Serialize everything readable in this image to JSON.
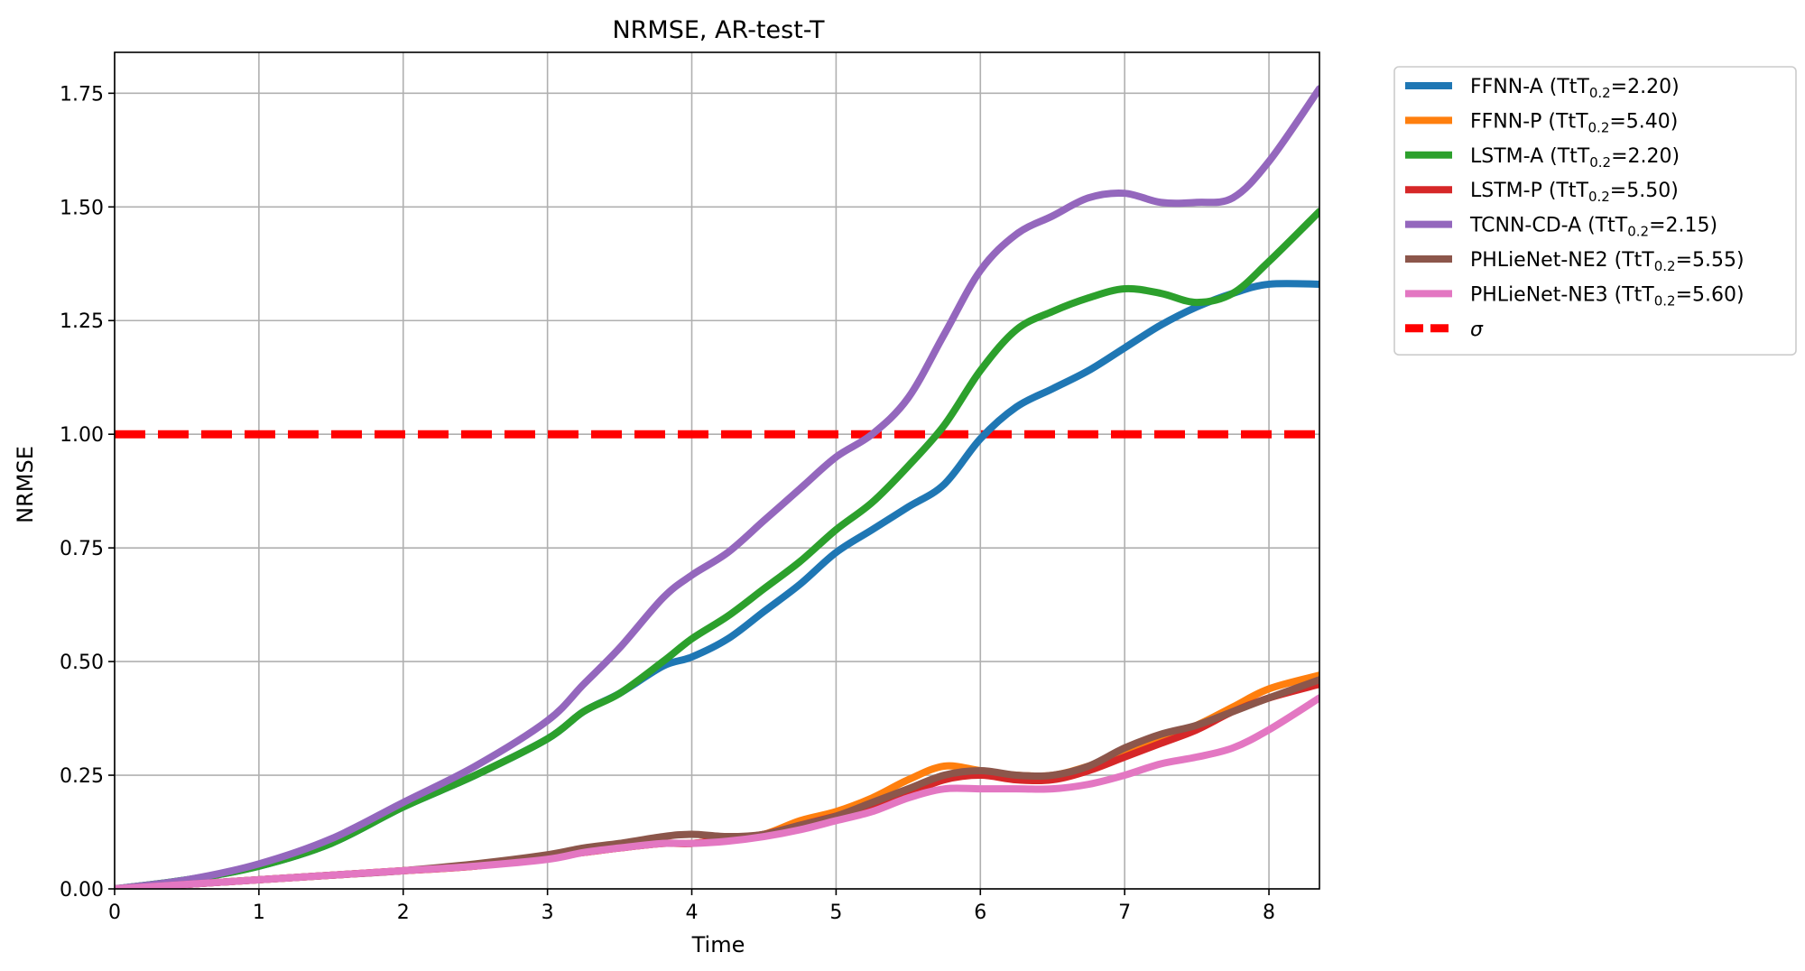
{
  "chart_data": {
    "type": "line",
    "title": "NRMSE, AR-test-T",
    "xlabel": "Time",
    "ylabel": "NRMSE",
    "xlim": [
      0,
      8.35
    ],
    "ylim": [
      0,
      1.84
    ],
    "xticks": [
      0,
      1,
      2,
      3,
      4,
      5,
      6,
      7,
      8
    ],
    "xtick_labels": [
      "0",
      "1",
      "2",
      "3",
      "4",
      "5",
      "6",
      "7",
      "8"
    ],
    "yticks": [
      0,
      0.25,
      0.5,
      0.75,
      1.0,
      1.25,
      1.5,
      1.75
    ],
    "ytick_labels": [
      "0.00",
      "0.25",
      "0.50",
      "0.75",
      "1.00",
      "1.25",
      "1.50",
      "1.75"
    ],
    "grid": true,
    "legend_position": "outside-top-right",
    "x": [
      0,
      0.5,
      1,
      1.5,
      2,
      2.5,
      3,
      3.25,
      3.5,
      3.8,
      4,
      4.25,
      4.5,
      4.75,
      5,
      5.25,
      5.5,
      5.75,
      6,
      6.25,
      6.5,
      6.75,
      7,
      7.25,
      7.5,
      7.75,
      8,
      8.35
    ],
    "series": [
      {
        "name": "FFNN-A",
        "ttt": "2.20",
        "color": "#1f77b4",
        "values": [
          0,
          0.02,
          0.05,
          0.1,
          0.18,
          0.25,
          0.33,
          0.39,
          0.43,
          0.49,
          0.51,
          0.55,
          0.61,
          0.67,
          0.74,
          0.79,
          0.84,
          0.89,
          0.99,
          1.06,
          1.1,
          1.14,
          1.19,
          1.24,
          1.28,
          1.31,
          1.33,
          1.33
        ]
      },
      {
        "name": "FFNN-P",
        "ttt": "5.40",
        "color": "#ff7f0e",
        "values": [
          0,
          0.01,
          0.02,
          0.03,
          0.04,
          0.05,
          0.07,
          0.08,
          0.09,
          0.1,
          0.1,
          0.11,
          0.12,
          0.15,
          0.17,
          0.2,
          0.24,
          0.27,
          0.26,
          0.25,
          0.25,
          0.27,
          0.3,
          0.33,
          0.36,
          0.4,
          0.44,
          0.47
        ]
      },
      {
        "name": "LSTM-A",
        "ttt": "2.20",
        "color": "#2ca02c",
        "values": [
          0,
          0.02,
          0.05,
          0.1,
          0.18,
          0.25,
          0.33,
          0.39,
          0.43,
          0.5,
          0.55,
          0.6,
          0.66,
          0.72,
          0.79,
          0.85,
          0.93,
          1.02,
          1.14,
          1.23,
          1.27,
          1.3,
          1.32,
          1.31,
          1.29,
          1.31,
          1.38,
          1.49
        ]
      },
      {
        "name": "LSTM-P",
        "ttt": "5.50",
        "color": "#d62728",
        "values": [
          0,
          0.01,
          0.02,
          0.03,
          0.04,
          0.05,
          0.07,
          0.08,
          0.09,
          0.1,
          0.1,
          0.11,
          0.12,
          0.14,
          0.16,
          0.18,
          0.21,
          0.24,
          0.25,
          0.24,
          0.24,
          0.26,
          0.29,
          0.32,
          0.35,
          0.39,
          0.42,
          0.45
        ]
      },
      {
        "name": "TCNN-CD-A",
        "ttt": "2.15",
        "color": "#9467bd",
        "values": [
          0,
          0.02,
          0.055,
          0.11,
          0.19,
          0.27,
          0.37,
          0.45,
          0.53,
          0.64,
          0.69,
          0.74,
          0.81,
          0.88,
          0.95,
          1.0,
          1.08,
          1.22,
          1.36,
          1.44,
          1.48,
          1.52,
          1.53,
          1.51,
          1.51,
          1.52,
          1.6,
          1.76
        ]
      },
      {
        "name": "PHLieNet-NE2",
        "ttt": "5.55",
        "color": "#8c564b",
        "values": [
          0,
          0.01,
          0.02,
          0.03,
          0.04,
          0.055,
          0.075,
          0.09,
          0.1,
          0.115,
          0.12,
          0.115,
          0.12,
          0.14,
          0.16,
          0.19,
          0.22,
          0.25,
          0.26,
          0.25,
          0.25,
          0.27,
          0.31,
          0.34,
          0.36,
          0.39,
          0.42,
          0.46
        ]
      },
      {
        "name": "PHLieNet-NE3",
        "ttt": "5.60",
        "color": "#e377c2",
        "values": [
          0,
          0.01,
          0.02,
          0.03,
          0.04,
          0.05,
          0.065,
          0.08,
          0.09,
          0.1,
          0.1,
          0.105,
          0.115,
          0.13,
          0.15,
          0.17,
          0.2,
          0.22,
          0.22,
          0.22,
          0.22,
          0.23,
          0.25,
          0.275,
          0.29,
          0.31,
          0.35,
          0.42
        ]
      }
    ],
    "sigma": {
      "name": "σ",
      "value": 1.0,
      "color": "#ff0000"
    },
    "ttt_label": "TtT",
    "ttt_subscript": "0.2"
  }
}
